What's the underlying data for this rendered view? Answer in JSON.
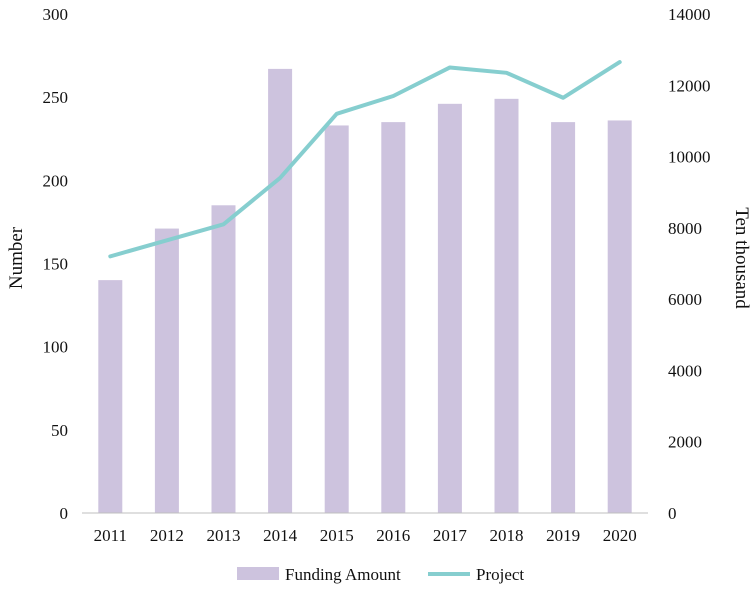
{
  "chart_data": {
    "type": "bar",
    "categories": [
      "2011",
      "2012",
      "2013",
      "2014",
      "2015",
      "2016",
      "2017",
      "2018",
      "2019",
      "2020"
    ],
    "series": [
      {
        "name": "Funding Amount",
        "type": "bar",
        "axis": "left",
        "values": [
          140,
          171,
          185,
          267,
          233,
          235,
          246,
          249,
          235,
          236
        ],
        "color": "#CDC3DE"
      },
      {
        "name": "Project",
        "type": "line",
        "axis": "right",
        "values": [
          7200,
          7650,
          8100,
          9400,
          11200,
          11700,
          12500,
          12350,
          11650,
          12650
        ],
        "color": "#86CECF"
      }
    ],
    "ylabel": "Number",
    "y2label": "Ten thousand",
    "ylim": [
      0,
      300
    ],
    "y2lim": [
      0,
      14000
    ],
    "yticks": [
      "0",
      "50",
      "100",
      "150",
      "200",
      "250",
      "300"
    ],
    "y2ticks": [
      "0",
      "2000",
      "4000",
      "6000",
      "8000",
      "10000",
      "12000",
      "14000"
    ],
    "grid": false,
    "legend": "bottom-center"
  }
}
